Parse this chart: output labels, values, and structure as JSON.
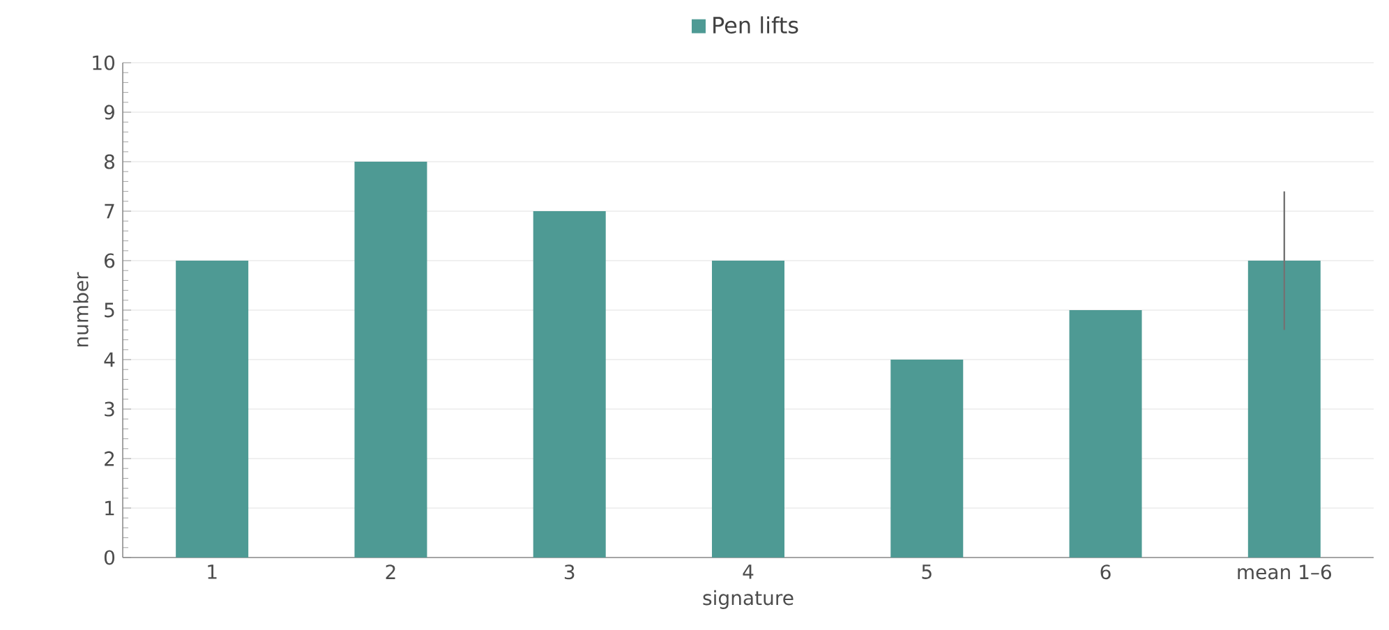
{
  "chart_data": {
    "type": "bar",
    "xlabel": "signature",
    "ylabel": "number",
    "categories": [
      "1",
      "2",
      "3",
      "4",
      "5",
      "6",
      "mean 1–6"
    ],
    "series": [
      {
        "name": "Pen lifts",
        "color": "#4e9a94",
        "values": [
          6,
          8,
          7,
          6,
          4,
          5,
          6
        ],
        "errors": [
          null,
          null,
          null,
          null,
          null,
          null,
          1.4
        ]
      }
    ],
    "ylim": [
      0,
      10
    ],
    "yticks": [
      0,
      1,
      2,
      3,
      4,
      5,
      6,
      7,
      8,
      9,
      10
    ],
    "grid": "y",
    "legend": "top"
  }
}
